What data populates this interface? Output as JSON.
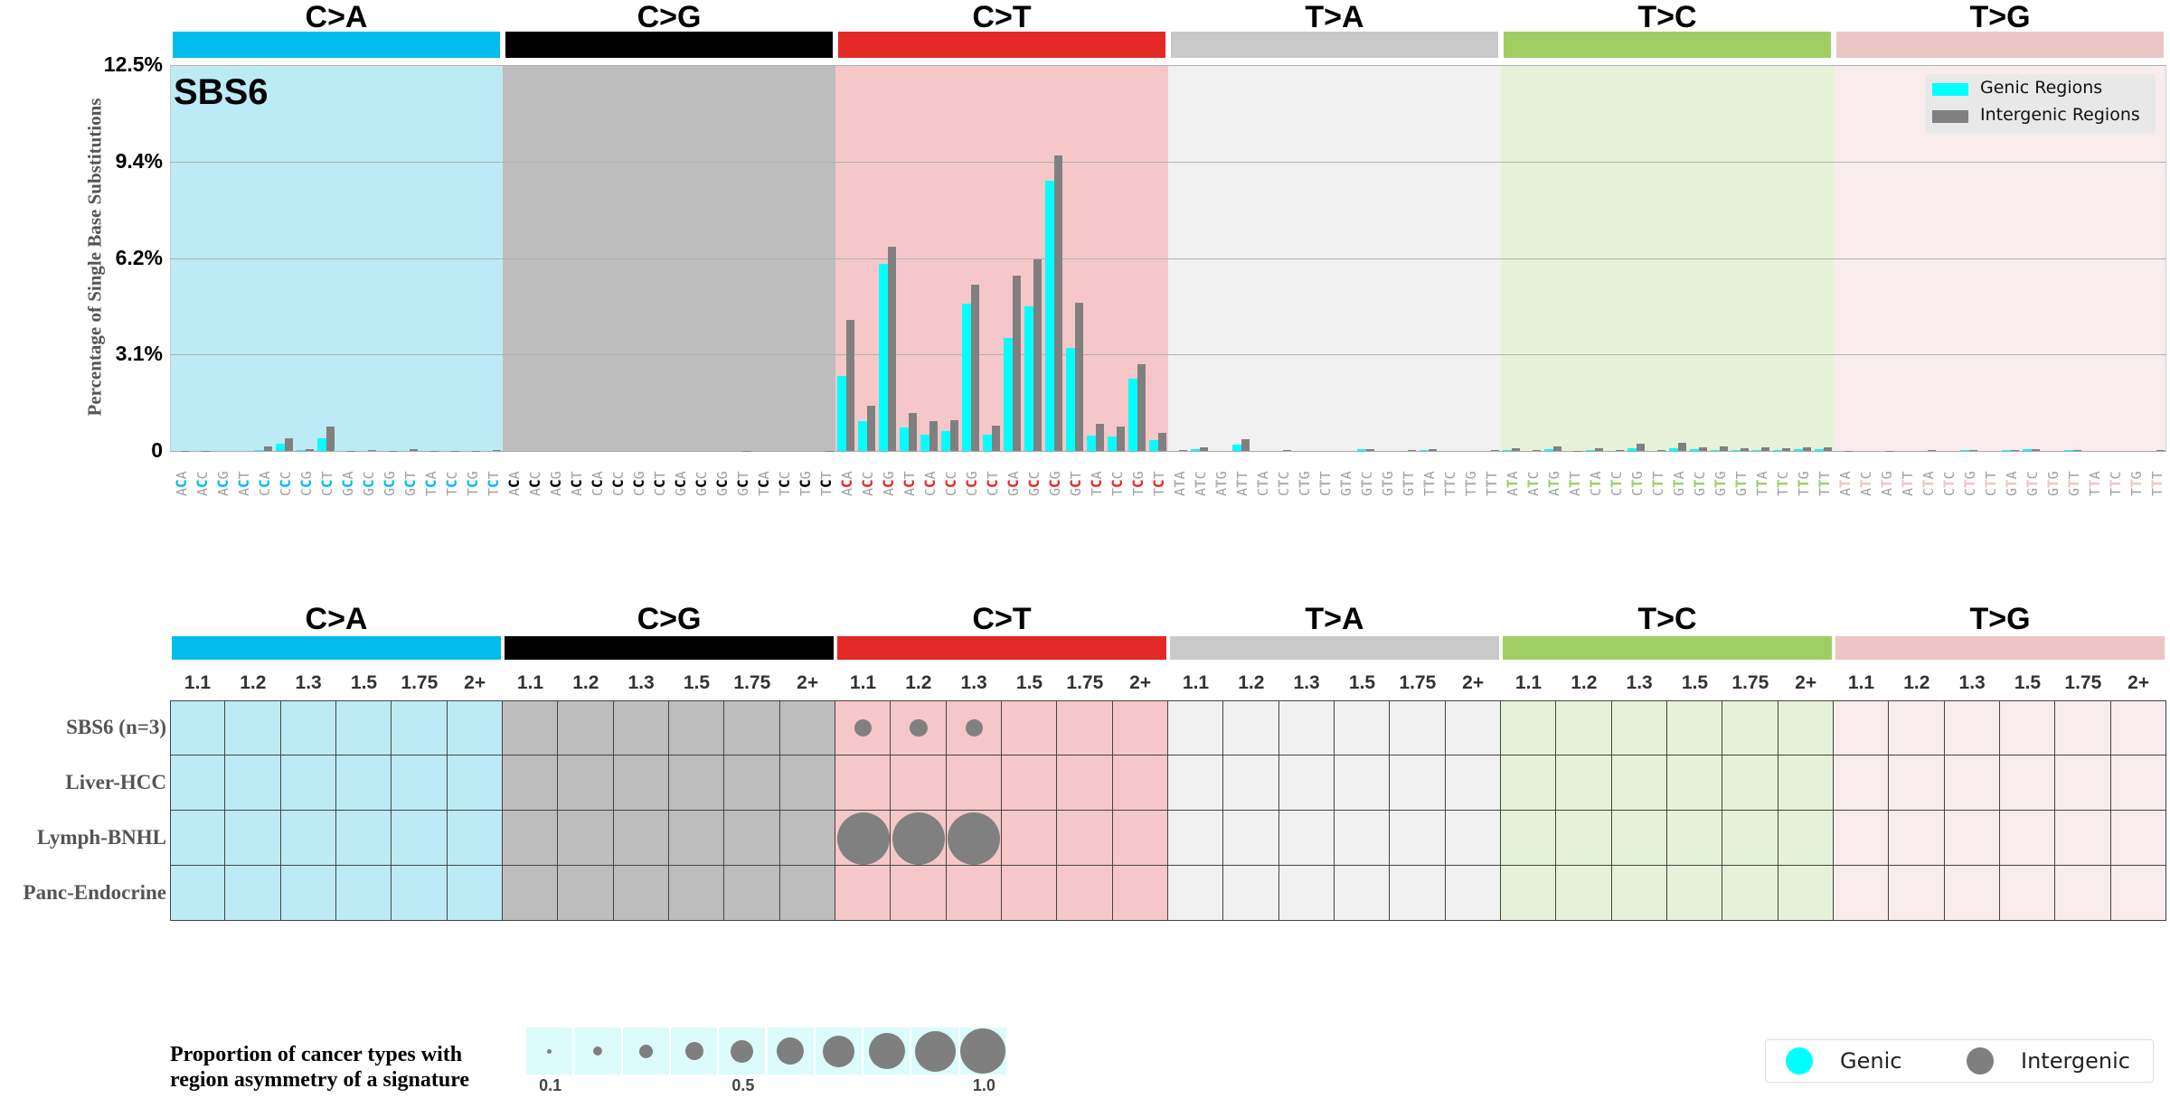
{
  "colors": {
    "genic": "#00ffff",
    "intergenic": "#808080",
    "class_bar": {
      "C>A": "#03bcee",
      "C>G": "#000000",
      "C>T": "#e32926",
      "T>A": "#cac9c9",
      "T>C": "#a1ce63",
      "T>G": "#ebc6c4"
    },
    "class_bg": {
      "C>A": "#bdebf5",
      "C>G": "#bdbdbd",
      "C>T": "#f6c7c9",
      "T>A": "#f1f1f1",
      "T>C": "#e5f2d7",
      "T>G": "#f8ecec"
    }
  },
  "chart_data": [
    {
      "type": "bar",
      "title": "SBS6",
      "ylabel": "Percentage of Single Base Substitutions",
      "ylim": [
        0,
        12.5
      ],
      "yticks": [
        0,
        3.125,
        6.25,
        9.375,
        12.5
      ],
      "ytick_labels": [
        "0",
        "3.1%",
        "6.2%",
        "9.4%",
        "12.5%"
      ],
      "grid": "horizontal",
      "legend": {
        "placement": "top-right",
        "entries": [
          "Genic Regions",
          "Intergenic Regions"
        ]
      },
      "classes": [
        "C>A",
        "C>G",
        "C>T",
        "T>A",
        "T>C",
        "T>G"
      ],
      "contexts": {
        "C": [
          "ACA",
          "ACC",
          "ACG",
          "ACT",
          "CCA",
          "CCC",
          "CCG",
          "CCT",
          "GCA",
          "GCC",
          "GCG",
          "GCT",
          "TCA",
          "TCC",
          "TCG",
          "TCT"
        ],
        "T": [
          "ATA",
          "ATC",
          "ATG",
          "ATT",
          "CTA",
          "CTC",
          "CTG",
          "CTT",
          "GTA",
          "GTC",
          "GTG",
          "GTT",
          "TTA",
          "TTC",
          "TTG",
          "TTT"
        ]
      },
      "series": [
        {
          "name": "Genic Regions",
          "values": {
            "C>A": [
              0,
              0,
              0,
              0,
              0.03,
              0.23,
              0.03,
              0.42,
              0,
              0,
              0,
              0,
              0,
              0,
              0,
              0
            ],
            "C>G": [
              0,
              0,
              0,
              0,
              0,
              0,
              0,
              0,
              0,
              0,
              0,
              0,
              0,
              0,
              0,
              0
            ],
            "C>T": [
              2.44,
              0.98,
              6.07,
              0.75,
              0.54,
              0.63,
              4.76,
              0.52,
              3.66,
              4.68,
              8.76,
              3.34,
              0.49,
              0.47,
              2.34,
              0.34
            ],
            "T>A": [
              0,
              0.07,
              0,
              0.2,
              0,
              0,
              0,
              0,
              0,
              0.05,
              0,
              0,
              0.03,
              0,
              0,
              0
            ],
            "T>C": [
              0.02,
              0,
              0.05,
              0,
              0.03,
              0,
              0.1,
              0,
              0.1,
              0.05,
              0.04,
              0.03,
              0.03,
              0.03,
              0.05,
              0.05
            ],
            "T>G": [
              0,
              0,
              0,
              0,
              0,
              0,
              0.02,
              0,
              0.03,
              0.05,
              0,
              0.02,
              0,
              0,
              0,
              0
            ]
          }
        },
        {
          "name": "Intergenic Regions",
          "values": {
            "C>A": [
              0.01,
              0.01,
              0,
              0,
              0.15,
              0.41,
              0.07,
              0.79,
              0.01,
              0.03,
              0.01,
              0.06,
              0.01,
              0.01,
              0.01,
              0.03
            ],
            "C>G": [
              0,
              0,
              0,
              0,
              0,
              0,
              0,
              0,
              0,
              0,
              0,
              0.01,
              0,
              0,
              0,
              0.01
            ],
            "C>T": [
              4.24,
              1.46,
              6.63,
              1.24,
              0.98,
              0.99,
              5.38,
              0.83,
              5.67,
              6.22,
              9.57,
              4.81,
              0.88,
              0.78,
              2.81,
              0.6
            ],
            "T>A": [
              0.02,
              0.12,
              0,
              0.37,
              0,
              0.03,
              0,
              0,
              0,
              0.07,
              0,
              0.03,
              0.06,
              0,
              0,
              0.02
            ],
            "T>C": [
              0.1,
              0.04,
              0.15,
              0.01,
              0.1,
              0.03,
              0.23,
              0.04,
              0.25,
              0.12,
              0.16,
              0.08,
              0.12,
              0.08,
              0.13,
              0.13
            ],
            "T>G": [
              0.01,
              0,
              0.01,
              0,
              0.02,
              0,
              0.04,
              0,
              0.04,
              0.07,
              0,
              0.04,
              0,
              0,
              0,
              0.03
            ]
          }
        }
      ]
    },
    {
      "type": "table",
      "classes": [
        "C>A",
        "C>G",
        "C>T",
        "T>A",
        "T>C",
        "T>G"
      ],
      "columns": [
        "1.1",
        "1.2",
        "1.3",
        "1.5",
        "1.75",
        "2+"
      ],
      "rows": [
        "SBS6 (n=3)",
        "Liver-HCC",
        "Lymph-BNHL",
        "Panc-Endocrine"
      ],
      "bubbles": [
        {
          "row": "SBS6 (n=3)",
          "class": "C>T",
          "column": "1.1",
          "value": 0.33,
          "region": "Intergenic"
        },
        {
          "row": "SBS6 (n=3)",
          "class": "C>T",
          "column": "1.2",
          "value": 0.33,
          "region": "Intergenic"
        },
        {
          "row": "SBS6 (n=3)",
          "class": "C>T",
          "column": "1.3",
          "value": 0.33,
          "region": "Intergenic"
        },
        {
          "row": "Lymph-BNHL",
          "class": "C>T",
          "column": "1.1",
          "value": 1.0,
          "region": "Intergenic"
        },
        {
          "row": "Lymph-BNHL",
          "class": "C>T",
          "column": "1.2",
          "value": 1.0,
          "region": "Intergenic"
        },
        {
          "row": "Lymph-BNHL",
          "class": "C>T",
          "column": "1.3",
          "value": 1.0,
          "region": "Intergenic"
        }
      ],
      "size_legend": {
        "title_line1": "Proportion of cancer types with",
        "title_line2": "region asymmetry of a signature",
        "values": [
          0.1,
          0.2,
          0.3,
          0.4,
          0.5,
          0.6,
          0.7,
          0.8,
          0.9,
          1.0
        ],
        "labels": [
          "0.1",
          "0.5",
          "1.0"
        ]
      },
      "color_legend": {
        "genic": "Genic",
        "intergenic": "Intergenic"
      }
    }
  ]
}
